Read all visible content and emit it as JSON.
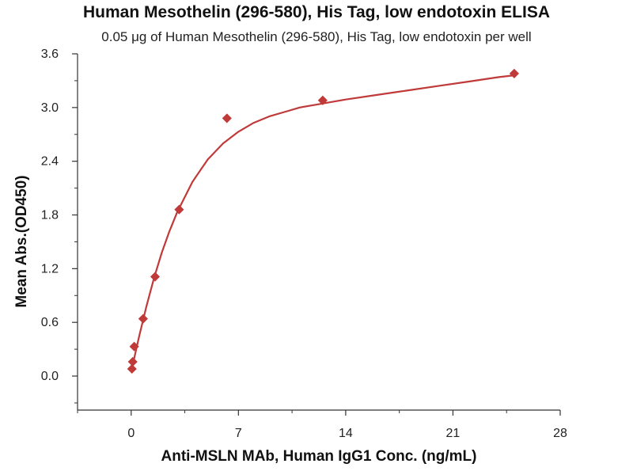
{
  "chart_data": {
    "type": "scatter",
    "title": "Human Mesothelin (296-580), His Tag, low endotoxin ELISA",
    "subtitle": "0.05 μg of Human Mesothelin (296-580), His Tag, low endotoxin per well",
    "xlabel": "Anti-MSLN MAb, Human IgG1 Conc. (ng/mL)",
    "ylabel": "Mean Abs.(OD450)",
    "xlim": [
      -3.5,
      28
    ],
    "ylim": [
      -0.38,
      3.6
    ],
    "xticks": [
      "0",
      "7",
      "14",
      "21",
      "28"
    ],
    "yticks": [
      "0.0",
      "0.6",
      "1.2",
      "1.8",
      "2.4",
      "3.0",
      "3.6"
    ],
    "grid": false,
    "color": "#c03a3a",
    "series": [
      {
        "points": [
          {
            "x": 0.05,
            "y": 0.08
          },
          {
            "x": 0.1,
            "y": 0.16
          },
          {
            "x": 0.2,
            "y": 0.33
          },
          {
            "x": 0.78,
            "y": 0.64
          },
          {
            "x": 1.56,
            "y": 1.11
          },
          {
            "x": 3.13,
            "y": 1.86
          },
          {
            "x": 6.25,
            "y": 2.88
          },
          {
            "x": 12.5,
            "y": 3.08
          },
          {
            "x": 25.0,
            "y": 3.38
          }
        ]
      }
    ],
    "fit_curve": [
      {
        "x": 0.0,
        "y": 0.05
      },
      {
        "x": 0.5,
        "y": 0.43
      },
      {
        "x": 1.0,
        "y": 0.78
      },
      {
        "x": 1.5,
        "y": 1.1
      },
      {
        "x": 2.0,
        "y": 1.38
      },
      {
        "x": 2.5,
        "y": 1.62
      },
      {
        "x": 3.0,
        "y": 1.83
      },
      {
        "x": 4.0,
        "y": 2.17
      },
      {
        "x": 5.0,
        "y": 2.42
      },
      {
        "x": 6.0,
        "y": 2.6
      },
      {
        "x": 7.0,
        "y": 2.73
      },
      {
        "x": 8.0,
        "y": 2.83
      },
      {
        "x": 9.0,
        "y": 2.9
      },
      {
        "x": 10.0,
        "y": 2.95
      },
      {
        "x": 11.0,
        "y": 3.0
      },
      {
        "x": 12.0,
        "y": 3.03
      },
      {
        "x": 13.0,
        "y": 3.06
      },
      {
        "x": 14.0,
        "y": 3.09
      },
      {
        "x": 16.0,
        "y": 3.14
      },
      {
        "x": 18.0,
        "y": 3.19
      },
      {
        "x": 20.0,
        "y": 3.24
      },
      {
        "x": 22.0,
        "y": 3.29
      },
      {
        "x": 24.0,
        "y": 3.34
      },
      {
        "x": 25.0,
        "y": 3.36
      }
    ]
  }
}
